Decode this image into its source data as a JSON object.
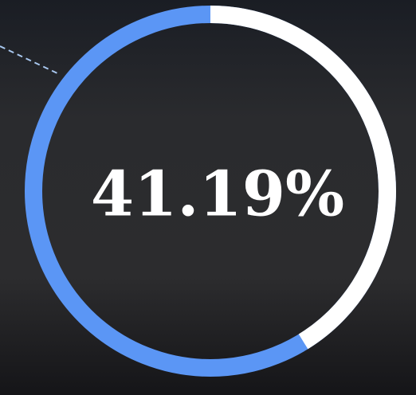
{
  "chart_data": {
    "type": "donut",
    "values": [
      41.19
    ],
    "value_labels": [
      "41.19%"
    ],
    "ylim": [
      0,
      100
    ],
    "color": "#ffffff",
    "track_color": "#5b96f5"
  }
}
